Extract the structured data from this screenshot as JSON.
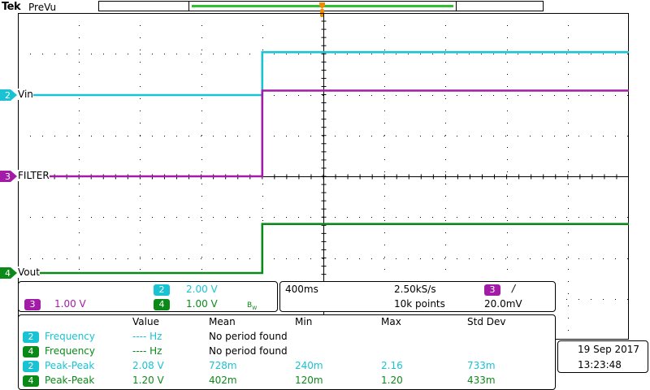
{
  "header": {
    "brand": "Tek",
    "mode": "PreVu"
  },
  "colors": {
    "ch2": "#19c3d3",
    "ch3": "#a21ca8",
    "ch4": "#0b8a19",
    "trigger": "#f08a00",
    "grid": "#000000"
  },
  "channels": [
    {
      "id": "2",
      "name": "Vin"
    },
    {
      "id": "3",
      "name": "FILTER"
    },
    {
      "id": "4",
      "name": "Vout"
    }
  ],
  "vertical": {
    "ch2": {
      "badge": "2",
      "scale": "2.00 V"
    },
    "ch3": {
      "badge": "3",
      "scale": "1.00 V"
    },
    "ch4": {
      "badge": "4",
      "scale": "1.00 V",
      "bw": "B",
      "bw_sub": "W"
    }
  },
  "horizontal": {
    "time_div": "400ms",
    "sample_rate": "2.50kS/s",
    "points": "10k points",
    "trigger_channel": "3",
    "trigger_slope": "/",
    "trigger_level": "20.0mV"
  },
  "measurements": {
    "headers": [
      "Value",
      "Mean",
      "Min",
      "Max",
      "Std Dev"
    ],
    "rows": [
      {
        "ch": "2",
        "name": "Frequency",
        "value": "---- Hz",
        "mean": "No period found",
        "min": "",
        "max": "",
        "std": ""
      },
      {
        "ch": "4",
        "name": "Frequency",
        "value": "---- Hz",
        "mean": "No period found",
        "min": "",
        "max": "",
        "std": ""
      },
      {
        "ch": "2",
        "name": "Peak-Peak",
        "value": "2.08 V",
        "mean": "728m",
        "min": "240m",
        "max": "2.16",
        "std": "733m"
      },
      {
        "ch": "4",
        "name": "Peak-Peak",
        "value": "1.20 V",
        "mean": "402m",
        "min": "120m",
        "max": "1.20",
        "std": "433m"
      }
    ]
  },
  "datetime": {
    "date": "19 Sep  2017",
    "time": "13:23:48"
  },
  "chart_data": {
    "type": "line",
    "x_unit": "s",
    "xlim": [
      -1.6,
      2.4
    ],
    "series": [
      {
        "name": "Vin",
        "channel": "2",
        "x": [
          -1.6,
          0.0,
          0.0,
          2.4
        ],
        "y": [
          0.0,
          0.0,
          2.1,
          2.1
        ]
      },
      {
        "name": "FILTER",
        "channel": "3",
        "x": [
          -1.6,
          0.0,
          0.0,
          2.4
        ],
        "y": [
          0.0,
          0.0,
          2.1,
          2.1
        ]
      },
      {
        "name": "Vout",
        "channel": "4",
        "x": [
          -1.6,
          0.0,
          0.0,
          2.4
        ],
        "y": [
          0.0,
          0.0,
          1.2,
          1.2
        ]
      }
    ]
  }
}
